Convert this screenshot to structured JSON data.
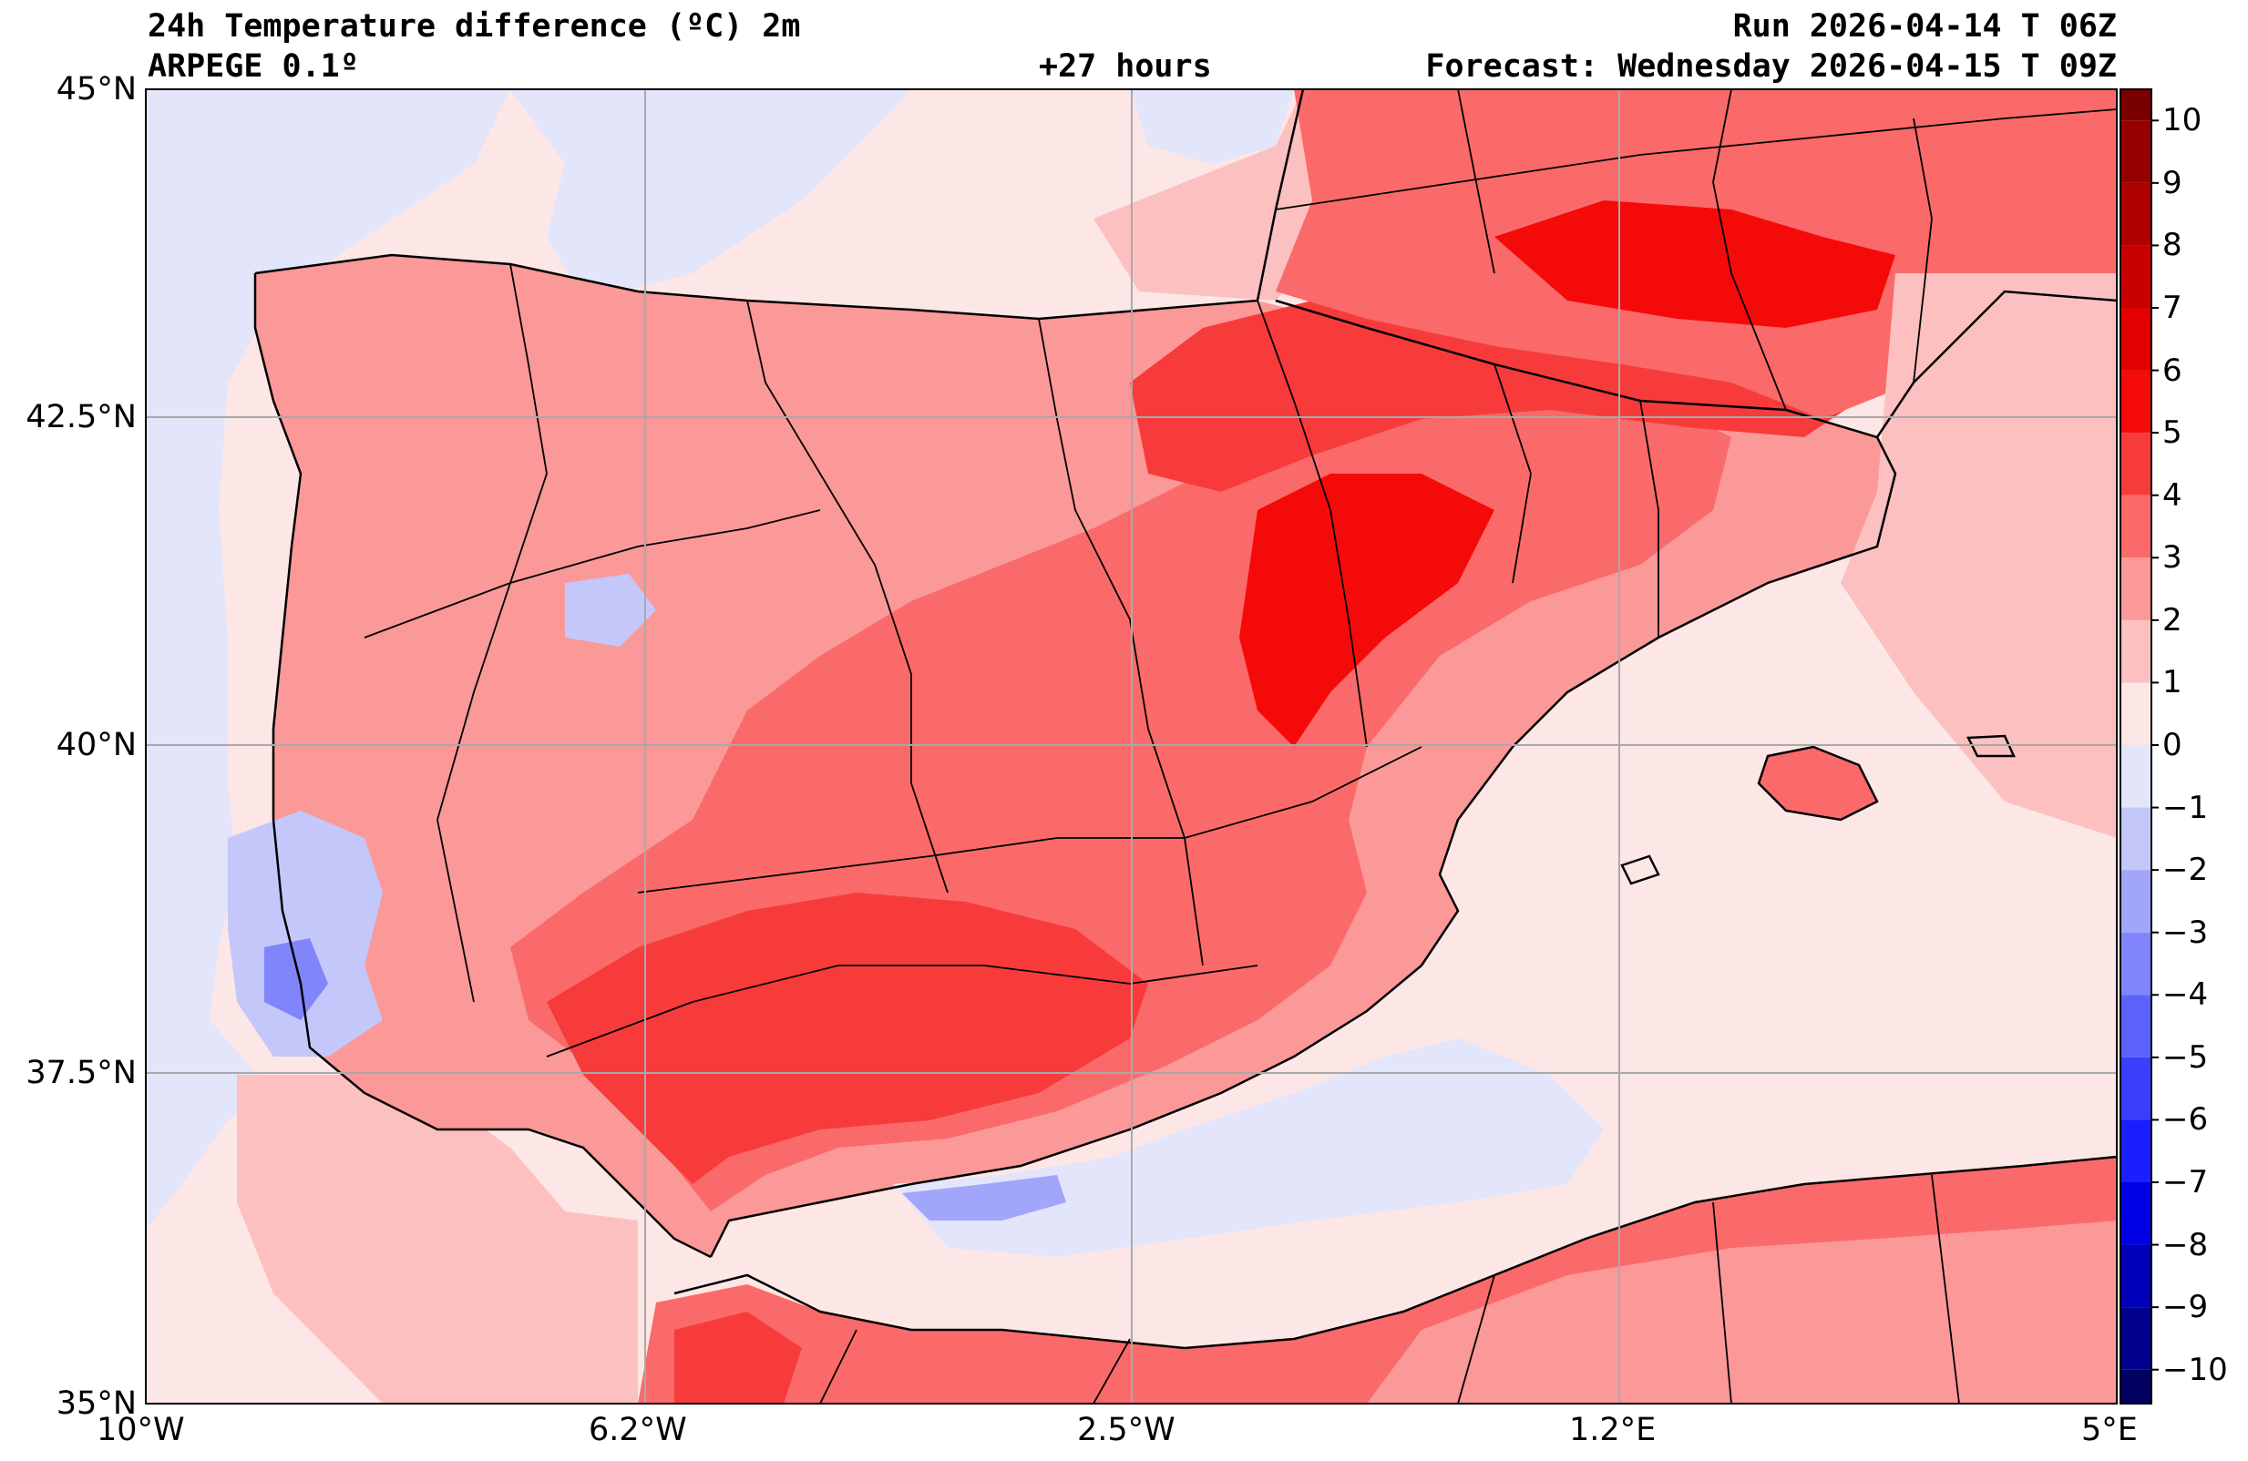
{
  "header": {
    "title": "24h Temperature difference (ºC) 2m",
    "model": "ARPEGE 0.1º",
    "lead": "+27 hours",
    "run": "Run 2026-04-14 T 06Z",
    "forecast": "Forecast: Wednesday 2026-04-15 T 09Z"
  },
  "map": {
    "lat_ticks": [
      "45°N",
      "42.5°N",
      "40°N",
      "37.5°N",
      "35°N"
    ],
    "lon_ticks": [
      "10°W",
      "6.2°W",
      "2.5°W",
      "1.2°E",
      "5°E"
    ],
    "lat_range": [
      35,
      45
    ],
    "lon_range": [
      -10,
      5
    ],
    "grid": true
  },
  "colorbar": {
    "ticks": [
      "10",
      "9",
      "8",
      "7",
      "6",
      "5",
      "4",
      "3",
      "2",
      "1",
      "0",
      "−1",
      "−2",
      "−3",
      "−4",
      "−5",
      "−6",
      "−7",
      "−8",
      "−9",
      "−10"
    ],
    "colors_warm": [
      "#fde6e6",
      "#fcc0c0",
      "#fb9898",
      "#fa6a6a",
      "#f73b3b",
      "#f50a0a",
      "#e20000",
      "#c80000",
      "#b00000",
      "#960000",
      "#7a0000"
    ],
    "colors_cool": [
      "#e3e5fb",
      "#c4c7fa",
      "#a2a6fa",
      "#8085fb",
      "#5d62fc",
      "#3a3ffd",
      "#1a1ffd",
      "#0000e8",
      "#0000b8",
      "#00008c",
      "#000060"
    ]
  }
}
